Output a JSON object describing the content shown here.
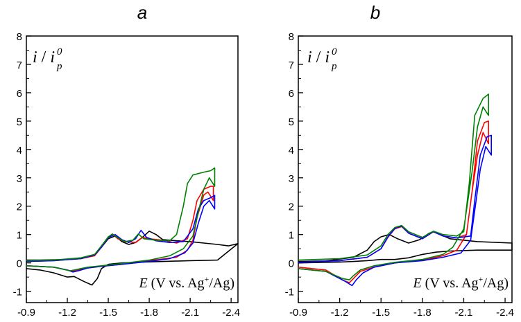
{
  "chart_data": [
    {
      "panel": "a",
      "type": "line",
      "title": "a",
      "ylabel": {
        "main": "i",
        "sep": " / ",
        "sub_main": "i",
        "sup": "0",
        "sub": "p"
      },
      "xlabel": {
        "E": "E",
        "rest": " (V vs. Ag",
        "sup": "+",
        "tail": "/Ag)"
      },
      "xlim": [
        -0.9,
        -2.45
      ],
      "ylim": [
        -1.4,
        8
      ],
      "xticks": [
        -0.9,
        -1.2,
        -1.5,
        -1.8,
        -2.1,
        -2.4
      ],
      "xtick_labels": [
        "-0.9",
        "-1.2",
        "-1.5",
        "-1.8",
        "-2.1",
        "-2.4"
      ],
      "yticks": [
        -1,
        0,
        1,
        2,
        3,
        4,
        5,
        6,
        7,
        8
      ],
      "ytick_labels": [
        "-1",
        "0",
        "1",
        "2",
        "3",
        "4",
        "5",
        "6",
        "7",
        "8"
      ],
      "series": [
        {
          "name": "black",
          "color": "#000000",
          "x": [
            -0.9,
            -1.0,
            -1.1,
            -1.2,
            -1.3,
            -1.4,
            -1.45,
            -1.5,
            -1.55,
            -1.6,
            -1.65,
            -1.7,
            -1.75,
            -1.8,
            -1.85,
            -1.9,
            -2.0,
            -2.1,
            -2.2,
            -2.3,
            -2.38,
            -2.45,
            -2.3,
            -2.1,
            -1.9,
            -1.7,
            -1.6,
            -1.5,
            -1.45,
            -1.42,
            -1.38,
            -1.32,
            -1.25,
            -1.2,
            -1.1,
            -1.0,
            -0.9
          ],
          "y": [
            0.1,
            0.1,
            0.11,
            0.12,
            0.15,
            0.3,
            0.55,
            0.85,
            0.95,
            0.75,
            0.65,
            0.72,
            0.9,
            1.12,
            1.0,
            0.82,
            0.78,
            0.75,
            0.7,
            0.65,
            0.6,
            0.68,
            0.1,
            0.08,
            0.05,
            0.02,
            0.0,
            -0.05,
            -0.2,
            -0.55,
            -0.78,
            -0.65,
            -0.48,
            -0.5,
            -0.35,
            -0.25,
            -0.2
          ]
        },
        {
          "name": "red",
          "color": "#ff0000",
          "x": [
            -0.9,
            -1.1,
            -1.3,
            -1.4,
            -1.45,
            -1.5,
            -1.53,
            -1.57,
            -1.62,
            -1.7,
            -1.75,
            -1.8,
            -1.9,
            -2.0,
            -2.08,
            -2.12,
            -2.15,
            -2.2,
            -2.25,
            -2.27,
            -2.27,
            -2.23,
            -2.2,
            -2.15,
            -2.12,
            -2.08,
            -2.0,
            -1.8,
            -1.6,
            -1.45,
            -1.35,
            -1.28,
            -1.24,
            -1.2,
            -1.1,
            -0.9
          ],
          "y": [
            0.05,
            0.08,
            0.15,
            0.25,
            0.55,
            0.9,
            1.02,
            0.85,
            0.75,
            0.72,
            0.9,
            0.85,
            0.8,
            0.7,
            0.85,
            1.5,
            2.2,
            2.6,
            2.7,
            2.7,
            2.2,
            2.5,
            2.4,
            1.6,
            0.8,
            0.45,
            0.2,
            0.08,
            -0.05,
            -0.12,
            -0.18,
            -0.25,
            -0.3,
            -0.25,
            -0.15,
            -0.1
          ]
        },
        {
          "name": "blue",
          "color": "#0000ff",
          "x": [
            -0.9,
            -1.1,
            -1.3,
            -1.4,
            -1.45,
            -1.5,
            -1.55,
            -1.6,
            -1.65,
            -1.7,
            -1.74,
            -1.78,
            -1.85,
            -1.95,
            -2.05,
            -2.12,
            -2.16,
            -2.2,
            -2.25,
            -2.28,
            -2.28,
            -2.24,
            -2.2,
            -2.16,
            -2.12,
            -2.06,
            -1.95,
            -1.8,
            -1.6,
            -1.45,
            -1.35,
            -1.28,
            -1.24,
            -1.2,
            -1.1,
            -0.9
          ],
          "y": [
            0.05,
            0.08,
            0.15,
            0.28,
            0.55,
            0.9,
            1.0,
            0.82,
            0.72,
            0.85,
            1.15,
            0.9,
            0.78,
            0.72,
            0.75,
            1.2,
            1.9,
            2.2,
            2.3,
            2.38,
            1.9,
            2.2,
            2.0,
            1.4,
            0.7,
            0.35,
            0.15,
            0.05,
            -0.05,
            -0.12,
            -0.18,
            -0.28,
            -0.32,
            -0.25,
            -0.15,
            -0.1
          ]
        },
        {
          "name": "green",
          "color": "#008000",
          "x": [
            -0.9,
            -1.1,
            -1.3,
            -1.4,
            -1.45,
            -1.5,
            -1.53,
            -1.57,
            -1.62,
            -1.68,
            -1.72,
            -1.76,
            -1.85,
            -1.95,
            -2.0,
            -2.05,
            -2.08,
            -2.12,
            -2.2,
            -2.25,
            -2.28,
            -2.28,
            -2.24,
            -2.2,
            -2.16,
            -2.12,
            -2.05,
            -1.95,
            -1.8,
            -1.6,
            -1.45,
            -1.35,
            -1.28,
            -1.22,
            -1.1,
            -0.9
          ],
          "y": [
            0.08,
            0.1,
            0.18,
            0.3,
            0.6,
            0.92,
            1.02,
            0.88,
            0.75,
            0.8,
            1.02,
            0.85,
            0.8,
            0.78,
            1.0,
            2.0,
            2.8,
            3.1,
            3.2,
            3.25,
            3.35,
            2.7,
            3.0,
            2.6,
            1.8,
            0.95,
            0.5,
            0.25,
            0.1,
            -0.02,
            -0.1,
            -0.15,
            -0.22,
            -0.28,
            -0.15,
            -0.1
          ]
        }
      ]
    },
    {
      "panel": "b",
      "type": "line",
      "title": "b",
      "ylabel": {
        "main": "i",
        "sep": " / ",
        "sub_main": "i",
        "sup": "0",
        "sub": "p"
      },
      "xlabel": {
        "E": "E",
        "rest": " (V vs. Ag",
        "sup": "+",
        "tail": "/Ag)"
      },
      "xlim": [
        -0.9,
        -2.45
      ],
      "ylim": [
        -1.4,
        8
      ],
      "xticks": [
        -0.9,
        -1.2,
        -1.5,
        -1.8,
        -2.1,
        -2.4
      ],
      "xtick_labels": [
        "-0.9",
        "-1.2",
        "-1.5",
        "-1.8",
        "-2.1",
        "-2.4"
      ],
      "yticks": [
        -1,
        0,
        1,
        2,
        3,
        4,
        5,
        6,
        7,
        8
      ],
      "ytick_labels": [
        "-1",
        "0",
        "1",
        "2",
        "3",
        "4",
        "5",
        "6",
        "7",
        "8"
      ],
      "series": [
        {
          "name": "black",
          "color": "#000000",
          "x": [
            -0.9,
            -1.1,
            -1.3,
            -1.4,
            -1.45,
            -1.5,
            -1.56,
            -1.62,
            -1.7,
            -1.78,
            -1.85,
            -1.88,
            -1.93,
            -2.0,
            -2.2,
            -2.45,
            -2.45,
            -2.2,
            -2.0,
            -1.9,
            -1.8,
            -1.7,
            -1.6,
            -1.5,
            -1.4,
            -1.3,
            -1.2,
            -1.1,
            -0.9
          ],
          "y": [
            0.05,
            0.07,
            0.2,
            0.45,
            0.75,
            0.92,
            1.0,
            0.85,
            0.7,
            0.82,
            1.05,
            1.1,
            1.0,
            0.85,
            0.75,
            0.7,
            0.45,
            0.45,
            0.42,
            0.38,
            0.3,
            0.18,
            0.12,
            0.12,
            0.08,
            0.05,
            0.03,
            0.02,
            0.0
          ]
        },
        {
          "name": "red",
          "color": "#ff0000",
          "x": [
            -0.9,
            -1.2,
            -1.4,
            -1.5,
            -1.55,
            -1.6,
            -1.65,
            -1.7,
            -1.8,
            -1.88,
            -1.95,
            -2.05,
            -2.12,
            -2.16,
            -2.2,
            -2.25,
            -2.28,
            -2.28,
            -2.24,
            -2.2,
            -2.16,
            -2.12,
            -2.05,
            -1.95,
            -1.8,
            -1.6,
            -1.45,
            -1.35,
            -1.3,
            -1.27,
            -1.22,
            -1.1,
            -0.9
          ],
          "y": [
            0.02,
            0.08,
            0.2,
            0.5,
            0.9,
            1.2,
            1.28,
            1.05,
            0.85,
            1.1,
            0.95,
            0.88,
            1.0,
            2.5,
            4.3,
            4.95,
            5.0,
            4.2,
            4.6,
            3.8,
            2.5,
            1.0,
            0.45,
            0.25,
            0.1,
            0.0,
            -0.15,
            -0.3,
            -0.55,
            -0.7,
            -0.6,
            -0.25,
            -0.15
          ]
        },
        {
          "name": "blue",
          "color": "#0000ff",
          "x": [
            -0.9,
            -1.2,
            -1.4,
            -1.5,
            -1.55,
            -1.6,
            -1.65,
            -1.7,
            -1.8,
            -1.88,
            -1.95,
            -2.05,
            -2.15,
            -2.18,
            -2.22,
            -2.27,
            -2.3,
            -2.3,
            -2.26,
            -2.22,
            -2.19,
            -2.15,
            -2.08,
            -1.95,
            -1.8,
            -1.6,
            -1.45,
            -1.37,
            -1.32,
            -1.29,
            -1.24,
            -1.1,
            -0.9
          ],
          "y": [
            0.02,
            0.08,
            0.2,
            0.5,
            0.92,
            1.22,
            1.3,
            1.05,
            0.85,
            1.1,
            0.95,
            0.88,
            0.95,
            2.2,
            3.8,
            4.45,
            4.5,
            3.8,
            4.1,
            3.3,
            2.2,
            0.8,
            0.35,
            0.2,
            0.08,
            0.0,
            -0.15,
            -0.35,
            -0.6,
            -0.8,
            -0.65,
            -0.3,
            -0.2
          ]
        },
        {
          "name": "green",
          "color": "#008000",
          "x": [
            -0.9,
            -1.2,
            -1.4,
            -1.5,
            -1.55,
            -1.6,
            -1.65,
            -1.7,
            -1.8,
            -1.88,
            -1.95,
            -2.05,
            -2.1,
            -2.14,
            -2.18,
            -2.24,
            -2.28,
            -2.28,
            -2.24,
            -2.2,
            -2.16,
            -2.1,
            -2.02,
            -1.95,
            -1.8,
            -1.6,
            -1.45,
            -1.35,
            -1.3,
            -1.27,
            -1.22,
            -1.1,
            -0.9
          ],
          "y": [
            0.1,
            0.15,
            0.28,
            0.6,
            1.0,
            1.25,
            1.32,
            1.1,
            0.9,
            1.12,
            1.0,
            0.95,
            1.1,
            2.8,
            5.2,
            5.8,
            5.95,
            5.2,
            5.5,
            4.8,
            3.2,
            1.2,
            0.55,
            0.3,
            0.12,
            0.02,
            -0.1,
            -0.25,
            -0.45,
            -0.6,
            -0.55,
            -0.3,
            -0.2
          ]
        }
      ]
    }
  ]
}
